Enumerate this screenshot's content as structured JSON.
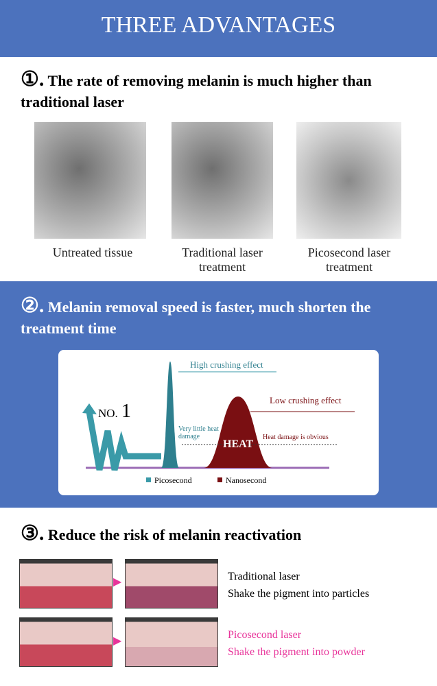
{
  "header": {
    "title": "THREE ADVANTAGES"
  },
  "sections": [
    {
      "marker": "①.",
      "heading": "The rate of removing melanin is much higher than traditional laser",
      "captions": [
        "Untreated tissue",
        "Traditional laser treatment",
        "Picosecond laser treatment"
      ]
    },
    {
      "marker": "②.",
      "heading": "Melanin removal speed is faster, much shorten the treatment time",
      "diagram": {
        "rank_prefix": "NO.",
        "rank": "1",
        "high_label": "High crushing effect",
        "low_label": "Low crushing effect",
        "little_damage": "Very little heat damage",
        "heat": "HEAT",
        "obvious_damage": "Heat damage is obvious",
        "legend": [
          "Picosecond",
          "Nanosecond"
        ]
      }
    },
    {
      "marker": "③.",
      "heading": "Reduce the risk of melanin reactivation",
      "rows": [
        {
          "name": "Traditional laser",
          "effect": "Shake the pigment into particles"
        },
        {
          "name": "Picosecond laser",
          "effect": "Shake the pigment into powder"
        }
      ]
    }
  ]
}
